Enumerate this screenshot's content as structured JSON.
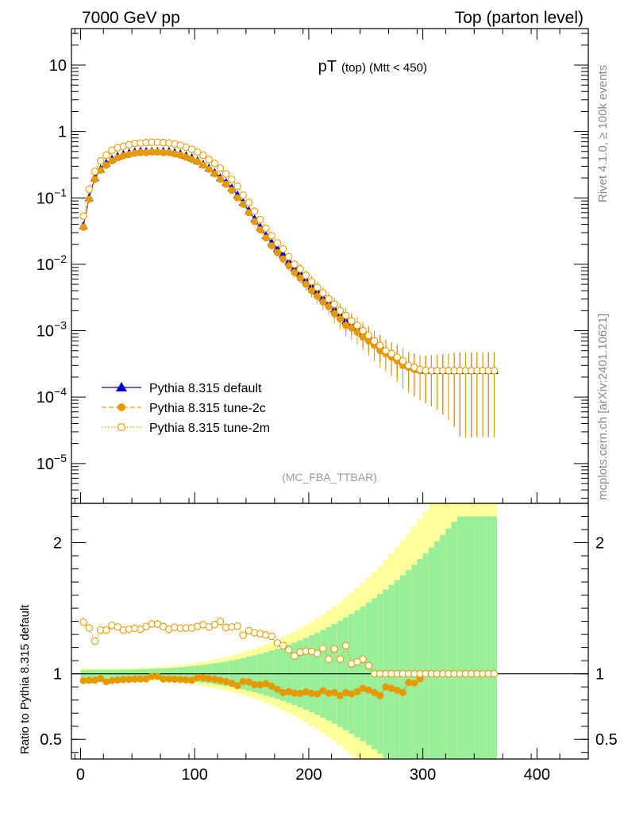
{
  "chart_data": {
    "type": "scatter",
    "header_left": "7000 GeV pp",
    "header_right": "Top (parton level)",
    "title_main": "pT",
    "title_sub": "(top) (Mtt < 450)",
    "analysis_tag": "(MC_FBA_TTBAR)",
    "side_label_top": "Rivet 4.1.0, ≥ 100k events",
    "side_label_bottom": "mcplots.cern.ch [arXiv:2401.10621]",
    "ratio_ylabel": "Ratio to Pythia 8.315 default",
    "xlim": [
      -8,
      445
    ],
    "ylim_main_log10": [
      -5.6,
      1.55
    ],
    "ylim_ratio": [
      0.35,
      2.3
    ],
    "x_ticks": [
      "0",
      "100",
      "200",
      "300",
      "400"
    ],
    "x_tick_values": [
      0,
      100,
      200,
      300,
      400
    ],
    "main_y_ticks": [
      "10",
      "1",
      "10",
      "10",
      "10",
      "10",
      "10"
    ],
    "main_y_tick_exps": [
      "",
      "",
      "−1",
      "−2",
      "−3",
      "−4",
      "−5"
    ],
    "main_y_tick_values": [
      1,
      0,
      -1,
      -2,
      -3,
      -4,
      -5
    ],
    "ratio_y_ticks": [
      "2",
      "1",
      "0.5"
    ],
    "ratio_y_tick_values": [
      2,
      1,
      0.5
    ],
    "legend": [
      {
        "name": "Pythia 8.315 default",
        "color": "#0000cc",
        "marker": "triangle",
        "dash": "solid"
      },
      {
        "name": "Pythia 8.315 tune-2c",
        "color": "#e69a00",
        "marker": "circle",
        "dash": "dashed"
      },
      {
        "name": "Pythia 8.315 tune-2m",
        "color": "#e69a00",
        "marker": "open-circle",
        "dash": "dotted"
      }
    ],
    "band_colors": {
      "inner": "#99ee99",
      "outer": "#ffff99"
    },
    "series": [
      {
        "name": "Pythia 8.315 default",
        "x": [
          2.5,
          7.5,
          12.5,
          17.5,
          22.5,
          27.5,
          32.5,
          37.5,
          42.5,
          47.5,
          52.5,
          57.5,
          62.5,
          67.5,
          72.5,
          77.5,
          82.5,
          87.5,
          92.5,
          97.5,
          102.5,
          107.5,
          112.5,
          117.5,
          122.5,
          127.5,
          132.5,
          137.5,
          142.5,
          147.5,
          152.5,
          157.5,
          162.5,
          167.5,
          172.5,
          177.5,
          182.5,
          187.5,
          192.5,
          197.5,
          202.5,
          207.5,
          212.5,
          217.5,
          222.5,
          227.5,
          232.5,
          237.5,
          242.5,
          247.5,
          252.5,
          257.5,
          262.5,
          267.5,
          272.5,
          277.5,
          282.5,
          287.5,
          292.5,
          297.5,
          302.5,
          307.5,
          312.5,
          317.5,
          322.5,
          327.5,
          332.5,
          337.5,
          342.5,
          347.5,
          352.5,
          357.5,
          362.5
        ],
        "values": [
          0.038,
          0.1,
          0.2,
          0.27,
          0.33,
          0.38,
          0.42,
          0.45,
          0.47,
          0.49,
          0.5,
          0.5,
          0.5,
          0.5,
          0.5,
          0.5,
          0.48,
          0.46,
          0.43,
          0.4,
          0.36,
          0.32,
          0.28,
          0.24,
          0.2,
          0.17,
          0.14,
          0.11,
          0.085,
          0.064,
          0.048,
          0.036,
          0.027,
          0.021,
          0.017,
          0.014,
          0.011,
          0.0088,
          0.0073,
          0.0058,
          0.0047,
          0.0039,
          0.0031,
          0.0027,
          0.0021,
          0.0018,
          0.0014,
          0.0013,
          0.0011,
          0.0009,
          0.0008,
          0.0007,
          0.0006,
          0.0005,
          0.00045,
          0.0004,
          0.00035,
          0.0003,
          0.00028,
          0.00026,
          0.00025,
          0.00025,
          0.00025,
          0.00025,
          0.00025,
          0.00025,
          0.00025,
          0.00025,
          0.00025,
          0.00025,
          0.00025,
          0.00025,
          0.00025
        ]
      },
      {
        "name": "Pythia 8.315 tune-2c",
        "x": [
          2.5,
          7.5,
          12.5,
          17.5,
          22.5,
          27.5,
          32.5,
          37.5,
          42.5,
          47.5,
          52.5,
          57.5,
          62.5,
          67.5,
          72.5,
          77.5,
          82.5,
          87.5,
          92.5,
          97.5,
          102.5,
          107.5,
          112.5,
          117.5,
          122.5,
          127.5,
          132.5,
          137.5,
          142.5,
          147.5,
          152.5,
          157.5,
          162.5,
          167.5,
          172.5,
          177.5,
          182.5,
          187.5,
          192.5,
          197.5,
          202.5,
          207.5,
          212.5,
          217.5,
          222.5,
          227.5,
          232.5,
          237.5,
          242.5,
          247.5,
          252.5,
          257.5,
          262.5,
          267.5,
          272.5,
          277.5,
          282.5,
          287.5,
          292.5,
          297.5,
          302.5,
          307.5,
          312.5,
          317.5,
          322.5,
          327.5,
          332.5,
          337.5,
          342.5,
          347.5,
          352.5,
          357.5,
          362.5
        ],
        "values": [
          0.036,
          0.095,
          0.19,
          0.26,
          0.31,
          0.36,
          0.4,
          0.43,
          0.45,
          0.47,
          0.48,
          0.48,
          0.49,
          0.49,
          0.48,
          0.48,
          0.46,
          0.44,
          0.41,
          0.38,
          0.35,
          0.31,
          0.27,
          0.23,
          0.19,
          0.16,
          0.13,
          0.1,
          0.08,
          0.06,
          0.044,
          0.033,
          0.025,
          0.019,
          0.015,
          0.012,
          0.0095,
          0.0075,
          0.0062,
          0.005,
          0.004,
          0.0033,
          0.0027,
          0.0023,
          0.0018,
          0.0015,
          0.0012,
          0.0011,
          0.00095,
          0.0008,
          0.0007,
          0.0006,
          0.0005,
          0.00045,
          0.0004,
          0.00035,
          0.0003,
          0.00028,
          0.00026,
          0.00025,
          0.00025,
          0.00025,
          0.00025,
          0.00025,
          0.00025,
          0.00025,
          0.00025,
          0.00025,
          0.00025,
          0.00025,
          0.00025,
          0.00025,
          0.00025
        ]
      },
      {
        "name": "Pythia 8.315 tune-2m",
        "x": [
          2.5,
          7.5,
          12.5,
          17.5,
          22.5,
          27.5,
          32.5,
          37.5,
          42.5,
          47.5,
          52.5,
          57.5,
          62.5,
          67.5,
          72.5,
          77.5,
          82.5,
          87.5,
          92.5,
          97.5,
          102.5,
          107.5,
          112.5,
          117.5,
          122.5,
          127.5,
          132.5,
          137.5,
          142.5,
          147.5,
          152.5,
          157.5,
          162.5,
          167.5,
          172.5,
          177.5,
          182.5,
          187.5,
          192.5,
          197.5,
          202.5,
          207.5,
          212.5,
          217.5,
          222.5,
          227.5,
          232.5,
          237.5,
          242.5,
          247.5,
          252.5,
          257.5,
          262.5,
          267.5,
          272.5,
          277.5,
          282.5,
          287.5,
          292.5,
          297.5,
          302.5,
          307.5,
          312.5,
          317.5,
          322.5,
          327.5,
          332.5,
          337.5,
          342.5,
          347.5,
          352.5,
          357.5,
          362.5
        ],
        "values": [
          0.053,
          0.135,
          0.25,
          0.36,
          0.44,
          0.52,
          0.57,
          0.6,
          0.63,
          0.66,
          0.67,
          0.68,
          0.69,
          0.69,
          0.68,
          0.67,
          0.65,
          0.62,
          0.58,
          0.54,
          0.49,
          0.44,
          0.38,
          0.33,
          0.28,
          0.23,
          0.19,
          0.15,
          0.11,
          0.085,
          0.063,
          0.047,
          0.035,
          0.027,
          0.021,
          0.017,
          0.013,
          0.01,
          0.0085,
          0.0068,
          0.0055,
          0.0045,
          0.0037,
          0.003,
          0.0025,
          0.002,
          0.0017,
          0.0014,
          0.0012,
          0.001,
          0.00085,
          0.0007,
          0.0006,
          0.0005,
          0.00045,
          0.0004,
          0.00035,
          0.0003,
          0.00028,
          0.00026,
          0.00025,
          0.00025,
          0.00025,
          0.00025,
          0.00025,
          0.00025,
          0.00025,
          0.00025,
          0.00025,
          0.00025,
          0.00025,
          0.00025,
          0.00025
        ]
      }
    ]
  }
}
